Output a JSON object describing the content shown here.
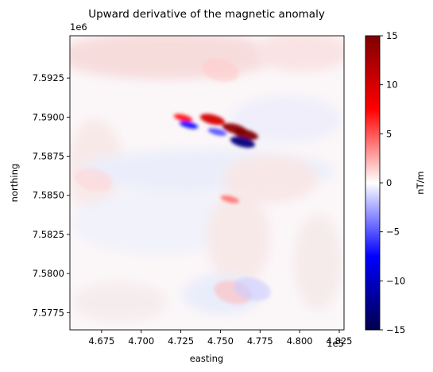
{
  "chart_data": {
    "type": "heatmap",
    "title": "Upward derivative of the magnetic anomaly",
    "xlabel": "easting",
    "ylabel": "northing",
    "x_offset_label": "1e5",
    "y_offset_label": "1e6",
    "xlim": [
      4.655,
      4.828
    ],
    "ylim": [
      7.5764,
      7.5952
    ],
    "x_ticks": [
      4.675,
      4.7,
      4.725,
      4.75,
      4.775,
      4.8,
      4.825
    ],
    "x_tick_labels": [
      "4.675",
      "4.700",
      "4.725",
      "4.750",
      "4.775",
      "4.800",
      "4.825"
    ],
    "y_ticks": [
      7.5775,
      7.58,
      7.5825,
      7.585,
      7.5875,
      7.59,
      7.5925
    ],
    "y_tick_labels": [
      "7.5775",
      "7.5800",
      "7.5825",
      "7.5850",
      "7.5875",
      "7.5900",
      "7.5925"
    ],
    "colormap": "seismic",
    "color_range": [
      -15,
      15
    ],
    "colorbar": {
      "label": "nT/m",
      "ticks": [
        -15,
        -10,
        -5,
        0,
        5,
        10,
        15
      ],
      "tick_labels": [
        "−15",
        "−10",
        "−5",
        "0",
        "5",
        "10",
        "15"
      ]
    },
    "anomalies": [
      {
        "x": 4.7265,
        "y": 7.58995,
        "value": 7
      },
      {
        "x": 4.745,
        "y": 7.58985,
        "value": 10
      },
      {
        "x": 4.759,
        "y": 7.58925,
        "value": 14
      },
      {
        "x": 4.766,
        "y": 7.5889,
        "value": 15
      },
      {
        "x": 4.73,
        "y": 7.5895,
        "value": -7
      },
      {
        "x": 4.748,
        "y": 7.58905,
        "value": -5
      },
      {
        "x": 4.764,
        "y": 7.5884,
        "value": -13
      },
      {
        "x": 4.756,
        "y": 7.58475,
        "value": 4
      },
      {
        "x": 4.758,
        "y": 7.5788,
        "value": 2
      },
      {
        "x": 4.75,
        "y": 7.593,
        "value": 1.5
      },
      {
        "x": 4.77,
        "y": 7.579,
        "value": -1.5
      },
      {
        "x": 4.67,
        "y": 7.586,
        "value": 1.2
      }
    ]
  }
}
